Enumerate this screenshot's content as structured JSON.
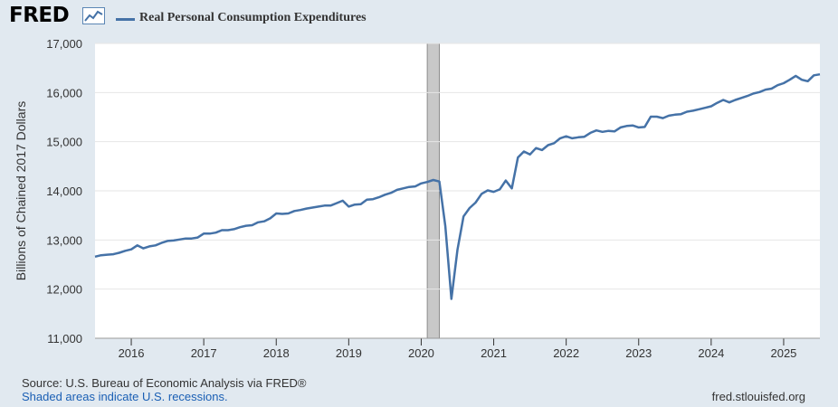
{
  "header": {
    "logo_text": "FRED",
    "logo_icon": "line-graph-icon",
    "legend_color": "#4572a7",
    "series_name": "Real Personal Consumption Expenditures"
  },
  "footer": {
    "source": "Source: U.S. Bureau of Economic Analysis via FRED®",
    "recession_note": "Shaded areas indicate U.S. recessions.",
    "site": "fred.stlouisfed.org"
  },
  "chart_data": {
    "type": "line",
    "title": "",
    "xlabel": "",
    "ylabel": "Billions of Chained 2017 Dollars",
    "xlim": [
      "2015-07",
      "2025-07"
    ],
    "ylim": [
      11000,
      17000
    ],
    "yticks": [
      11000,
      12000,
      13000,
      14000,
      15000,
      16000,
      17000
    ],
    "ytick_labels": [
      "11,000",
      "12,000",
      "13,000",
      "14,000",
      "15,000",
      "16,000",
      "17,000"
    ],
    "xticks": [
      "2016-01",
      "2017-01",
      "2018-01",
      "2019-01",
      "2020-01",
      "2021-01",
      "2022-01",
      "2023-01",
      "2024-01",
      "2025-01"
    ],
    "xtick_labels": [
      "2016",
      "2017",
      "2018",
      "2019",
      "2020",
      "2021",
      "2022",
      "2023",
      "2024",
      "2025"
    ],
    "grid": "horizontal",
    "line_color": "#4572a7",
    "recession": {
      "start": "2020-02",
      "end": "2020-04",
      "color": "#c8c8c8"
    },
    "series": [
      {
        "name": "Real Personal Consumption Expenditures",
        "points": [
          [
            "2015-07",
            12660
          ],
          [
            "2015-08",
            12690
          ],
          [
            "2015-09",
            12700
          ],
          [
            "2015-10",
            12710
          ],
          [
            "2015-11",
            12740
          ],
          [
            "2015-12",
            12780
          ],
          [
            "2016-01",
            12810
          ],
          [
            "2016-02",
            12890
          ],
          [
            "2016-03",
            12830
          ],
          [
            "2016-04",
            12870
          ],
          [
            "2016-05",
            12890
          ],
          [
            "2016-06",
            12940
          ],
          [
            "2016-07",
            12980
          ],
          [
            "2016-08",
            12990
          ],
          [
            "2016-09",
            13010
          ],
          [
            "2016-10",
            13030
          ],
          [
            "2016-11",
            13030
          ],
          [
            "2016-12",
            13050
          ],
          [
            "2017-01",
            13130
          ],
          [
            "2017-02",
            13130
          ],
          [
            "2017-03",
            13150
          ],
          [
            "2017-04",
            13200
          ],
          [
            "2017-05",
            13200
          ],
          [
            "2017-06",
            13220
          ],
          [
            "2017-07",
            13260
          ],
          [
            "2017-08",
            13290
          ],
          [
            "2017-09",
            13300
          ],
          [
            "2017-10",
            13360
          ],
          [
            "2017-11",
            13380
          ],
          [
            "2017-12",
            13440
          ],
          [
            "2018-01",
            13540
          ],
          [
            "2018-02",
            13530
          ],
          [
            "2018-03",
            13540
          ],
          [
            "2018-04",
            13590
          ],
          [
            "2018-05",
            13610
          ],
          [
            "2018-06",
            13640
          ],
          [
            "2018-07",
            13660
          ],
          [
            "2018-08",
            13680
          ],
          [
            "2018-09",
            13700
          ],
          [
            "2018-10",
            13700
          ],
          [
            "2018-11",
            13750
          ],
          [
            "2018-12",
            13800
          ],
          [
            "2019-01",
            13680
          ],
          [
            "2019-02",
            13720
          ],
          [
            "2019-03",
            13730
          ],
          [
            "2019-04",
            13820
          ],
          [
            "2019-05",
            13830
          ],
          [
            "2019-06",
            13870
          ],
          [
            "2019-07",
            13920
          ],
          [
            "2019-08",
            13960
          ],
          [
            "2019-09",
            14020
          ],
          [
            "2019-10",
            14050
          ],
          [
            "2019-11",
            14080
          ],
          [
            "2019-12",
            14090
          ],
          [
            "2020-01",
            14150
          ],
          [
            "2020-02",
            14180
          ],
          [
            "2020-03",
            14220
          ],
          [
            "2020-04",
            14190
          ],
          [
            "2020-05",
            13280
          ],
          [
            "2020-06",
            11800
          ],
          [
            "2020-07",
            12800
          ],
          [
            "2020-08",
            13480
          ],
          [
            "2020-09",
            13650
          ],
          [
            "2020-10",
            13760
          ],
          [
            "2020-11",
            13940
          ],
          [
            "2020-12",
            14010
          ],
          [
            "2021-01",
            13980
          ],
          [
            "2021-02",
            14030
          ],
          [
            "2021-03",
            14210
          ],
          [
            "2021-04",
            14050
          ],
          [
            "2021-05",
            14680
          ],
          [
            "2021-06",
            14800
          ],
          [
            "2021-07",
            14740
          ],
          [
            "2021-08",
            14870
          ],
          [
            "2021-09",
            14830
          ],
          [
            "2021-10",
            14930
          ],
          [
            "2021-11",
            14970
          ],
          [
            "2021-12",
            15070
          ],
          [
            "2022-01",
            15110
          ],
          [
            "2022-02",
            15070
          ],
          [
            "2022-03",
            15090
          ],
          [
            "2022-04",
            15100
          ],
          [
            "2022-05",
            15180
          ],
          [
            "2022-06",
            15230
          ],
          [
            "2022-07",
            15200
          ],
          [
            "2022-08",
            15220
          ],
          [
            "2022-09",
            15210
          ],
          [
            "2022-10",
            15290
          ],
          [
            "2022-11",
            15320
          ],
          [
            "2022-12",
            15330
          ],
          [
            "2023-01",
            15290
          ],
          [
            "2023-02",
            15300
          ],
          [
            "2023-03",
            15510
          ],
          [
            "2023-04",
            15510
          ],
          [
            "2023-05",
            15480
          ],
          [
            "2023-06",
            15530
          ],
          [
            "2023-07",
            15550
          ],
          [
            "2023-08",
            15560
          ],
          [
            "2023-09",
            15610
          ],
          [
            "2023-10",
            15630
          ],
          [
            "2023-11",
            15660
          ],
          [
            "2023-12",
            15690
          ],
          [
            "2024-01",
            15720
          ],
          [
            "2024-02",
            15790
          ],
          [
            "2024-03",
            15850
          ],
          [
            "2024-04",
            15800
          ],
          [
            "2024-05",
            15850
          ],
          [
            "2024-06",
            15890
          ],
          [
            "2024-07",
            15930
          ],
          [
            "2024-08",
            15980
          ],
          [
            "2024-09",
            16010
          ],
          [
            "2024-10",
            16060
          ],
          [
            "2024-11",
            16080
          ],
          [
            "2024-12",
            16150
          ],
          [
            "2025-01",
            16190
          ],
          [
            "2025-02",
            16260
          ],
          [
            "2025-03",
            16340
          ],
          [
            "2025-04",
            16260
          ],
          [
            "2025-05",
            16230
          ],
          [
            "2025-06",
            16350
          ],
          [
            "2025-07",
            16370
          ]
        ]
      }
    ]
  }
}
